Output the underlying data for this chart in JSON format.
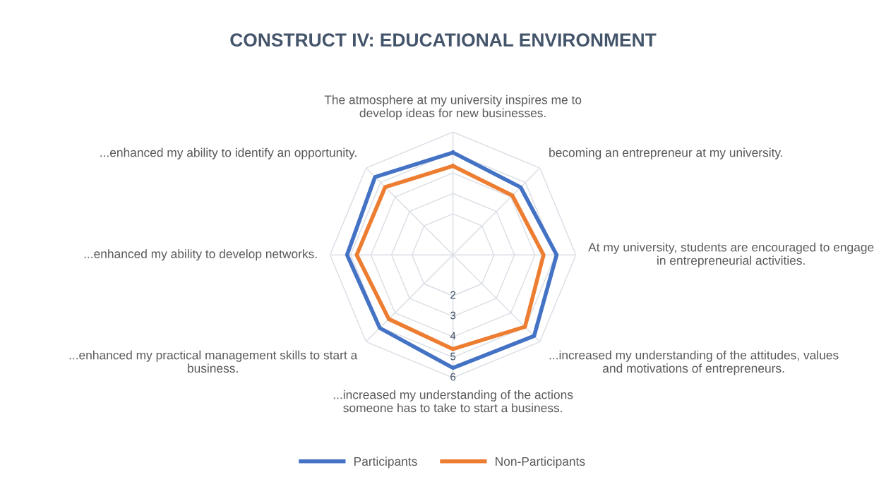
{
  "chart_data": {
    "type": "radar",
    "title": "CONSTRUCT IV: EDUCATIONAL ENVIRONMENT",
    "categories": [
      "The atmosphere at my university inspires me to develop ideas for new businesses.",
      "becoming an entrepreneur at my university.",
      "At my university, students are encouraged to engage in entrepreneurial activities.",
      "...increased my understanding of the attitudes, values and motivations of entrepreneurs.",
      "...increased my understanding of the actions someone has to take to start a business.",
      "...enhanced my practical management skills to start a business.",
      "...enhanced my ability to develop networks.",
      "...enhanced my ability to identify an opportunity."
    ],
    "series": [
      {
        "name": "Participants",
        "color": "#4472c4",
        "values": [
          5.0,
          4.67,
          5.06,
          5.6,
          5.52,
          5.05,
          5.17,
          5.38
        ]
      },
      {
        "name": "Non-Participants",
        "color": "#ed7d31",
        "values": [
          4.34,
          4.1,
          4.42,
          4.97,
          4.6,
          4.43,
          4.7,
          4.68
        ]
      }
    ],
    "ylim": [
      0,
      6
    ],
    "yticks": [
      2,
      3,
      4,
      5,
      6
    ],
    "grid": true,
    "legend": "bottom"
  }
}
